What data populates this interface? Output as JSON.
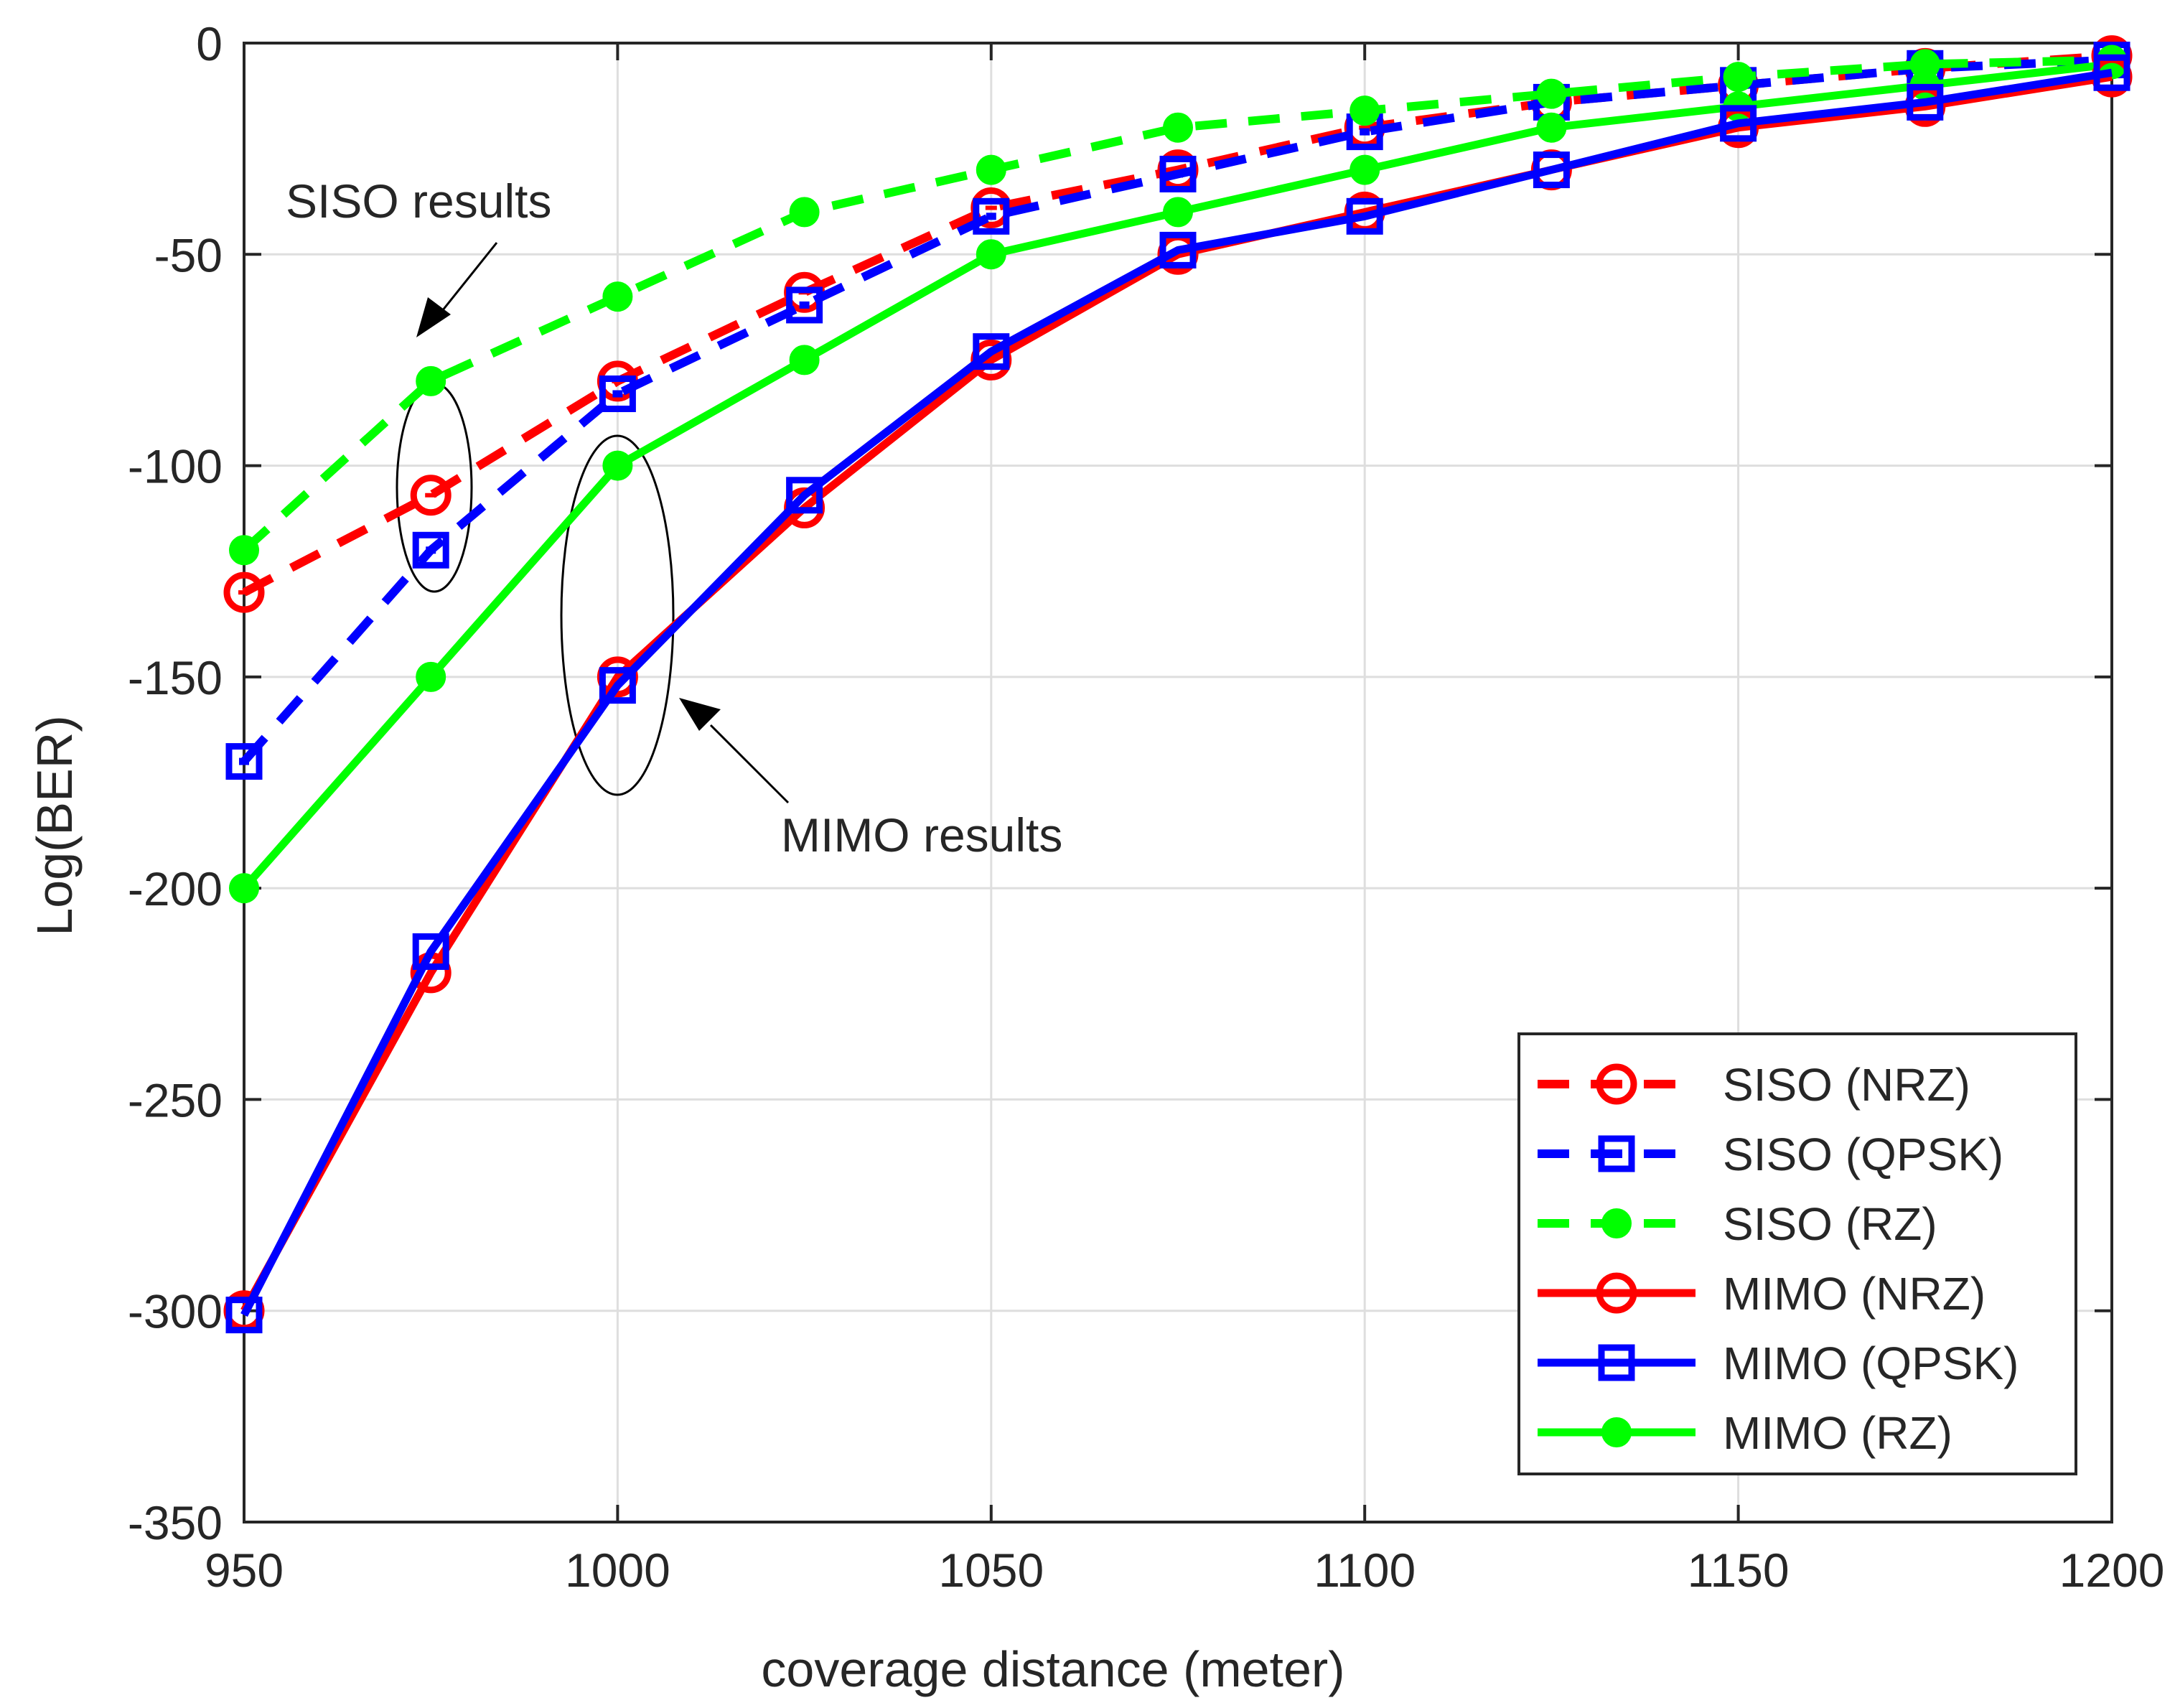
{
  "chart_data": {
    "type": "line",
    "xlabel": "coverage distance (meter)",
    "ylabel": "Log(BER)",
    "xlim": [
      950,
      1200
    ],
    "ylim": [
      -350,
      0
    ],
    "xticks": [
      950,
      1000,
      1050,
      1100,
      1150,
      1200
    ],
    "yticks": [
      0,
      -50,
      -100,
      -150,
      -200,
      -250,
      -300,
      -350
    ],
    "grid": true,
    "legend_position": "lower-right",
    "x": [
      950,
      975,
      1000,
      1025,
      1050,
      1075,
      1100,
      1125,
      1150,
      1175,
      1200
    ],
    "series": [
      {
        "name": "SISO (NRZ)",
        "color": "#ff0000",
        "line": "dashed",
        "marker": "circle-dot",
        "values": [
          -130,
          -107,
          -80,
          -59,
          -39,
          -30,
          -20,
          -14,
          -10,
          -6,
          -3
        ]
      },
      {
        "name": "SISO (QPSK)",
        "color": "#0000ff",
        "line": "dashed",
        "marker": "square-dot",
        "values": [
          -170,
          -120,
          -83,
          -62,
          -41,
          -31,
          -21,
          -14,
          -10,
          -6,
          -4
        ]
      },
      {
        "name": "SISO (RZ)",
        "color": "#00ff00",
        "line": "dashed",
        "marker": "filled-circle",
        "values": [
          -120,
          -80,
          -60,
          -40,
          -30,
          -20,
          -16,
          -12,
          -8,
          -5,
          -4
        ]
      },
      {
        "name": "MIMO (NRZ)",
        "color": "#ff0000",
        "line": "solid",
        "marker": "circle",
        "values": [
          -300,
          -220,
          -150,
          -110,
          -75,
          -50,
          -40,
          -30,
          -20,
          -15,
          -8
        ]
      },
      {
        "name": "MIMO (QPSK)",
        "color": "#0000ff",
        "line": "solid",
        "marker": "square",
        "values": [
          -301,
          -215,
          -152,
          -107,
          -73,
          -49,
          -41,
          -30,
          -19,
          -14,
          -7
        ]
      },
      {
        "name": "MIMO (RZ)",
        "color": "#00ff00",
        "line": "solid",
        "marker": "filled-circle",
        "values": [
          -200,
          -150,
          -100,
          -75,
          -50,
          -40,
          -30,
          -20,
          -15,
          -10,
          -5
        ]
      }
    ],
    "annotations": [
      {
        "text": "SISO results"
      },
      {
        "text": "MIMO results"
      }
    ]
  }
}
